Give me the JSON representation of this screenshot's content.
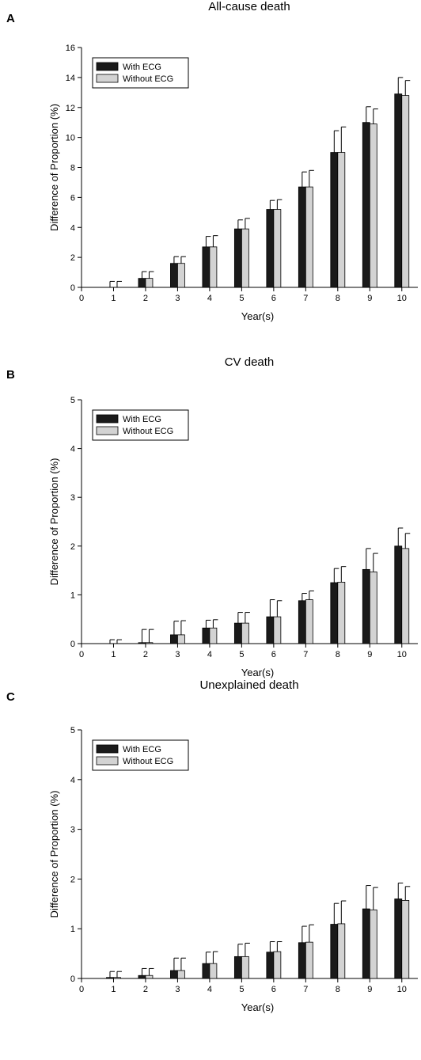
{
  "colors": {
    "with_ecg": "#1a1a1a",
    "without_ecg": "#d3d3d3",
    "axis": "#000000"
  },
  "chart_data": [
    {
      "panel": "A",
      "type": "bar",
      "title": "All-cause death",
      "xlabel": "Year(s)",
      "ylabel": "Difference of Proportion (%)",
      "x_ticks": [
        0,
        1,
        2,
        3,
        4,
        5,
        6,
        7,
        8,
        9,
        10
      ],
      "ylim": [
        0,
        16
      ],
      "y_ticks": [
        0,
        2,
        4,
        6,
        8,
        10,
        12,
        14,
        16
      ],
      "categories": [
        1,
        2,
        3,
        4,
        5,
        6,
        7,
        8,
        9,
        10
      ],
      "legend_position": "top-left",
      "series": [
        {
          "name": "With ECG",
          "values": [
            0.0,
            0.6,
            1.6,
            2.7,
            3.9,
            5.2,
            6.7,
            9.0,
            11.0,
            12.9
          ],
          "error": [
            0.4,
            0.45,
            0.45,
            0.7,
            0.6,
            0.6,
            1.0,
            1.45,
            1.05,
            1.1
          ]
        },
        {
          "name": "Without ECG",
          "values": [
            0.0,
            0.6,
            1.6,
            2.7,
            3.9,
            5.2,
            6.7,
            9.0,
            10.9,
            12.8
          ],
          "error": [
            0.4,
            0.45,
            0.45,
            0.75,
            0.7,
            0.65,
            1.1,
            1.7,
            1.0,
            1.0
          ]
        }
      ]
    },
    {
      "panel": "B",
      "type": "bar",
      "title": "CV death",
      "xlabel": "Year(s)",
      "ylabel": "Difference of Proportion (%)",
      "x_ticks": [
        0,
        1,
        2,
        3,
        4,
        5,
        6,
        7,
        8,
        9,
        10
      ],
      "ylim": [
        0,
        5
      ],
      "y_ticks": [
        0,
        1,
        2,
        3,
        4,
        5
      ],
      "categories": [
        1,
        2,
        3,
        4,
        5,
        6,
        7,
        8,
        9,
        10
      ],
      "legend_position": "top-left",
      "series": [
        {
          "name": "With ECG",
          "values": [
            0.0,
            0.02,
            0.18,
            0.32,
            0.42,
            0.55,
            0.88,
            1.25,
            1.52,
            2.0
          ],
          "error": [
            0.08,
            0.27,
            0.28,
            0.16,
            0.22,
            0.35,
            0.15,
            0.29,
            0.43,
            0.37
          ]
        },
        {
          "name": "Without ECG",
          "values": [
            0.0,
            0.02,
            0.18,
            0.32,
            0.42,
            0.55,
            0.9,
            1.26,
            1.47,
            1.95
          ],
          "error": [
            0.08,
            0.27,
            0.29,
            0.17,
            0.22,
            0.33,
            0.18,
            0.32,
            0.38,
            0.31
          ]
        }
      ]
    },
    {
      "panel": "C",
      "type": "bar",
      "title": "Unexplained death",
      "xlabel": "Year(s)",
      "ylabel": "Difference of Proportion (%)",
      "x_ticks": [
        0,
        1,
        2,
        3,
        4,
        5,
        6,
        7,
        8,
        9,
        10
      ],
      "ylim": [
        0,
        5
      ],
      "y_ticks": [
        0,
        1,
        2,
        3,
        4,
        5
      ],
      "categories": [
        1,
        2,
        3,
        4,
        5,
        6,
        7,
        8,
        9,
        10
      ],
      "legend_position": "top-left",
      "series": [
        {
          "name": "With ECG",
          "values": [
            0.02,
            0.06,
            0.16,
            0.3,
            0.44,
            0.53,
            0.72,
            1.09,
            1.4,
            1.6
          ],
          "error": [
            0.12,
            0.14,
            0.25,
            0.23,
            0.25,
            0.21,
            0.33,
            0.42,
            0.47,
            0.32
          ]
        },
        {
          "name": "Without ECG",
          "values": [
            0.02,
            0.06,
            0.16,
            0.3,
            0.44,
            0.54,
            0.73,
            1.1,
            1.38,
            1.57
          ],
          "error": [
            0.12,
            0.14,
            0.25,
            0.24,
            0.27,
            0.2,
            0.35,
            0.46,
            0.45,
            0.28
          ]
        }
      ]
    }
  ]
}
